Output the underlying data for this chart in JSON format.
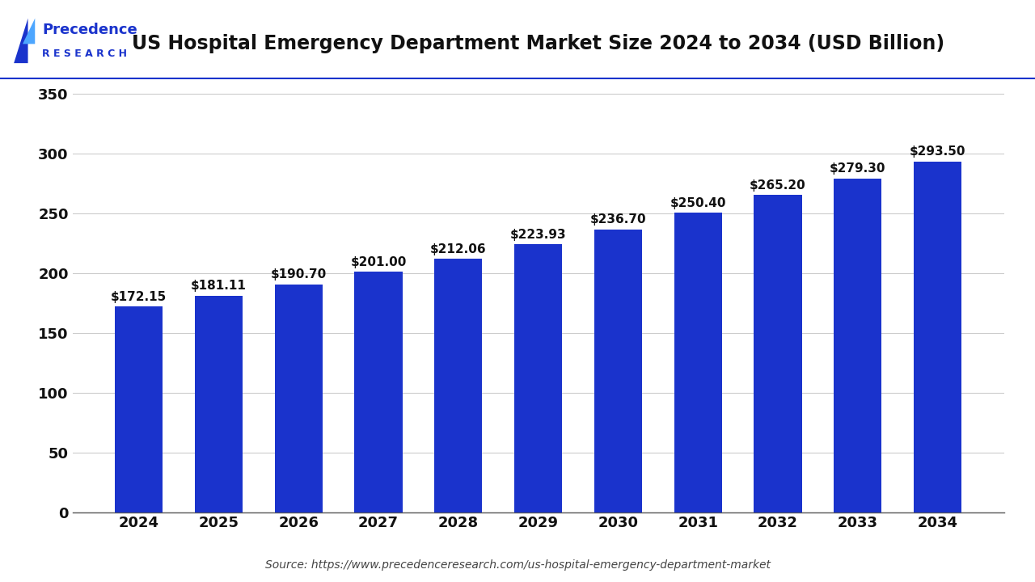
{
  "title": "US Hospital Emergency Department Market Size 2024 to 2034 (USD Billion)",
  "years": [
    2024,
    2025,
    2026,
    2027,
    2028,
    2029,
    2030,
    2031,
    2032,
    2033,
    2034
  ],
  "values": [
    172.15,
    181.11,
    190.7,
    201.0,
    212.06,
    223.93,
    236.7,
    250.4,
    265.2,
    279.3,
    293.5
  ],
  "labels": [
    "$172.15",
    "$181.11",
    "$190.70",
    "$201.00",
    "$212.06",
    "$223.93",
    "$236.70",
    "$250.40",
    "$265.20",
    "$279.30",
    "$293.50"
  ],
  "bar_color": "#1a33cc",
  "background_color": "#ffffff",
  "ylim": [
    0,
    370
  ],
  "yticks": [
    0,
    50,
    100,
    150,
    200,
    250,
    300,
    350
  ],
  "source_text": "Source: https://www.precedenceresearch.com/us-hospital-emergency-department-market",
  "title_fontsize": 17,
  "label_fontsize": 11,
  "tick_fontsize": 13,
  "source_fontsize": 10,
  "grid_color": "#cccccc",
  "title_color": "#111111",
  "tick_color": "#111111",
  "logo_blue": "#1a33cc",
  "logo_light_blue": "#4da6ff",
  "separator_color": "#1a33cc"
}
